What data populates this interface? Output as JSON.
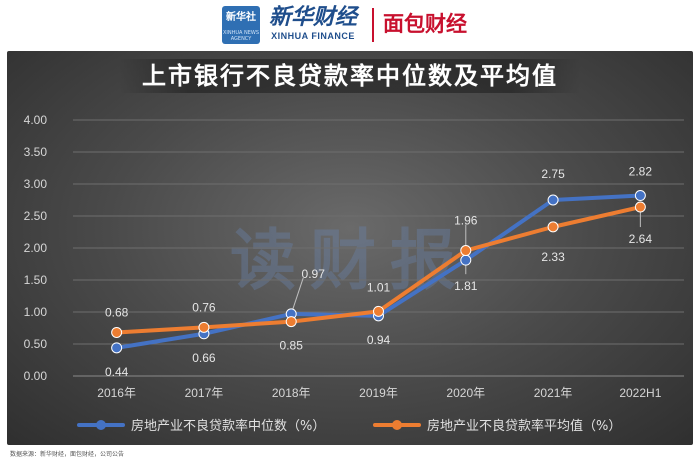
{
  "header": {
    "xinhua_badge": "新华社",
    "xinhua_badge_sub": "XINHUA NEWS AGENCY",
    "brand_cn": "新华财经",
    "brand_en": "XINHUA FINANCE",
    "partner_logo": "面包财经"
  },
  "watermark": "读财报",
  "source_note": "数据来源：新华财经，面包财经，公司公告",
  "colors": {
    "median": "#4472c4",
    "mean": "#ed7d31",
    "panel": "#4a4a4a"
  },
  "chart_data": {
    "type": "line",
    "title": "上市银行不良贷款率中位数及平均值",
    "categories": [
      "2016年",
      "2017年",
      "2018年",
      "2019年",
      "2020年",
      "2021年",
      "2022H1"
    ],
    "series": [
      {
        "name": "房地产业不良贷款率中位数（%）",
        "values": [
          0.44,
          0.66,
          0.97,
          0.94,
          1.81,
          2.75,
          2.82
        ],
        "color": "#4472c4"
      },
      {
        "name": "房地产业不良贷款率平均值（%）",
        "values": [
          0.68,
          0.76,
          0.85,
          1.01,
          1.96,
          2.33,
          2.64
        ],
        "color": "#ed7d31"
      }
    ],
    "data_labels": [
      [
        "0.44",
        "0.66",
        "0.97",
        "0.94",
        "1.81",
        "2.75",
        "2.82"
      ],
      [
        "0.68",
        "0.76",
        "0.85",
        "1.01",
        "1.96",
        "2.33",
        "2.64"
      ]
    ],
    "yticks": [
      "0.00",
      "0.50",
      "1.00",
      "1.50",
      "2.00",
      "2.50",
      "3.00",
      "3.50",
      "4.00"
    ],
    "ylim": [
      0,
      4
    ],
    "xlabel": "",
    "ylabel": "",
    "grid": true,
    "legend_position": "bottom"
  }
}
